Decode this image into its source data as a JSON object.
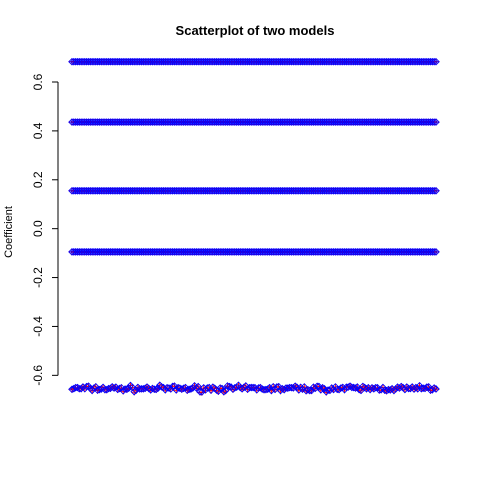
{
  "chart_data": {
    "type": "scatter",
    "title": "Scatterplot of two models",
    "xlabel": "",
    "ylabel": "Coefficient",
    "ylim": [
      -0.66,
      0.69
    ],
    "xlim": [
      0,
      200
    ],
    "y_ticks": [
      -0.6,
      -0.4,
      -0.2,
      0.0,
      0.2,
      0.4,
      0.6
    ],
    "y_tick_labels": [
      "-0.6",
      "-0.4",
      "-0.2",
      "0.0",
      "0.2",
      "0.4",
      "0.6"
    ],
    "grid": false,
    "colors": {
      "series_a": "#ff0000",
      "series_b": "#0000ff"
    },
    "series": [
      {
        "marker": "plus",
        "color": "#ff0000",
        "levels": [
          0.683,
          0.436,
          0.155,
          -0.095
        ],
        "noisy_level": -0.655
      },
      {
        "marker": "diamond",
        "color": "#0000ff",
        "levels": [
          0.683,
          0.436,
          0.155,
          -0.095
        ],
        "noisy_level": -0.655
      }
    ]
  }
}
